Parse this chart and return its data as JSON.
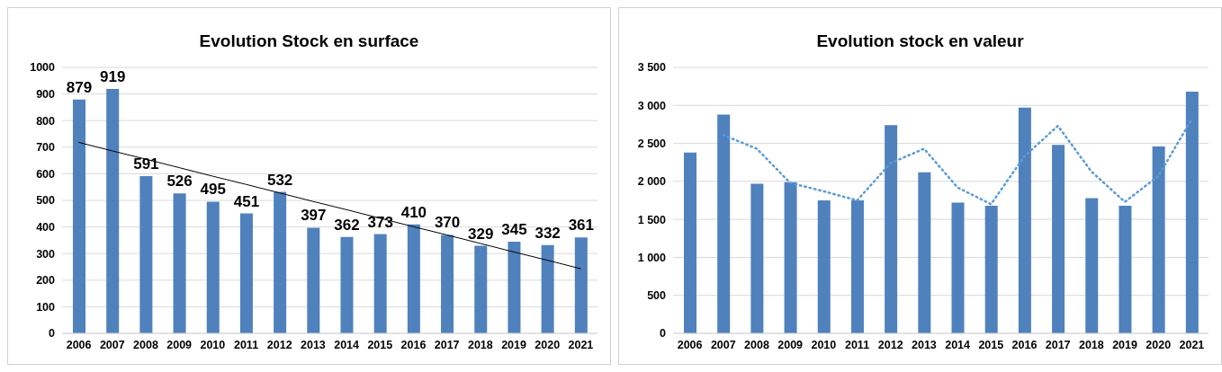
{
  "chart_data": [
    {
      "type": "bar",
      "title": "Evolution Stock en surface",
      "categories": [
        "2006",
        "2007",
        "2008",
        "2009",
        "2010",
        "2011",
        "2012",
        "2013",
        "2014",
        "2015",
        "2016",
        "2017",
        "2018",
        "2019",
        "2020",
        "2021"
      ],
      "series": [
        {
          "color": "#4f81bd",
          "values": [
            879,
            919,
            591,
            526,
            495,
            451,
            532,
            397,
            362,
            373,
            410,
            370,
            329,
            345,
            332,
            361
          ],
          "data_labels": true
        },
        {
          "type": "line",
          "color": "#000000",
          "line_style": "solid",
          "values": [
            718,
            686,
            655,
            623,
            591,
            560,
            528,
            496,
            465,
            433,
            401,
            370,
            338,
            306,
            275,
            243
          ]
        }
      ],
      "ylim": [
        0,
        1000
      ],
      "yticks": [
        0,
        100,
        200,
        300,
        400,
        500,
        600,
        700,
        800,
        900,
        1000
      ],
      "grid": "y",
      "legend": false
    },
    {
      "type": "bar",
      "title": "Evolution stock en valeur",
      "categories": [
        "2006",
        "2007",
        "2008",
        "2009",
        "2010",
        "2011",
        "2012",
        "2013",
        "2014",
        "2015",
        "2016",
        "2017",
        "2018",
        "2019",
        "2020",
        "2021"
      ],
      "series": [
        {
          "color": "#4f81bd",
          "values": [
            2380,
            2880,
            1970,
            1990,
            1750,
            1750,
            2740,
            2120,
            1720,
            1680,
            2970,
            2480,
            1780,
            1680,
            2460,
            3180
          ]
        },
        {
          "type": "line",
          "color": "#5b9bd5",
          "line_style": "dotted",
          "values": [
            null,
            2610,
            2430,
            1980,
            1870,
            1750,
            2240,
            2430,
            1920,
            1700,
            2330,
            2730,
            2130,
            1730,
            2070,
            2820
          ]
        }
      ],
      "ylim": [
        0,
        3500
      ],
      "yticks": [
        0,
        {
          "value": 500,
          "label": "500"
        },
        {
          "value": 1000,
          "label": "1 000"
        },
        {
          "value": 1500,
          "label": "1 500"
        },
        {
          "value": 2000,
          "label": "2 000"
        },
        {
          "value": 2500,
          "label": "2 500"
        },
        {
          "value": 3000,
          "label": "3 000"
        },
        {
          "value": 3500,
          "label": "3 500"
        }
      ],
      "grid": "y",
      "legend": false
    }
  ]
}
